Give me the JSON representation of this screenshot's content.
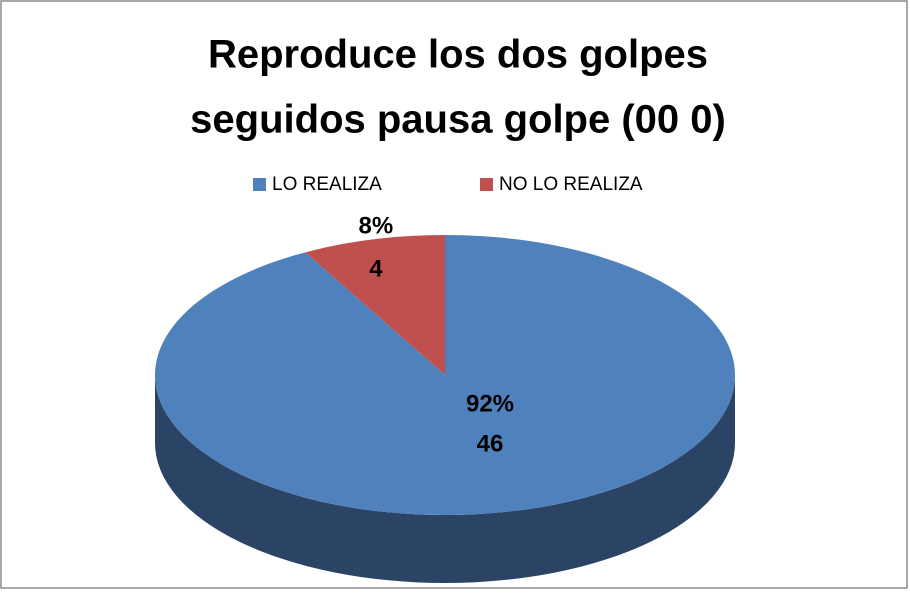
{
  "chart_data": {
    "type": "pie3d",
    "title": [
      "Reproduce los dos golpes",
      "seguidos pausa golpe (00 0)"
    ],
    "categories": [
      "LO REALIZA",
      "NO LO REALIZA"
    ],
    "values": [
      46,
      4
    ],
    "percent_labels": [
      "92%",
      "8%"
    ],
    "colors": [
      "#4f81bd",
      "#c0504d"
    ],
    "side_colors": [
      "#2b4465",
      "#7a2f2d"
    ],
    "legend": "top"
  }
}
